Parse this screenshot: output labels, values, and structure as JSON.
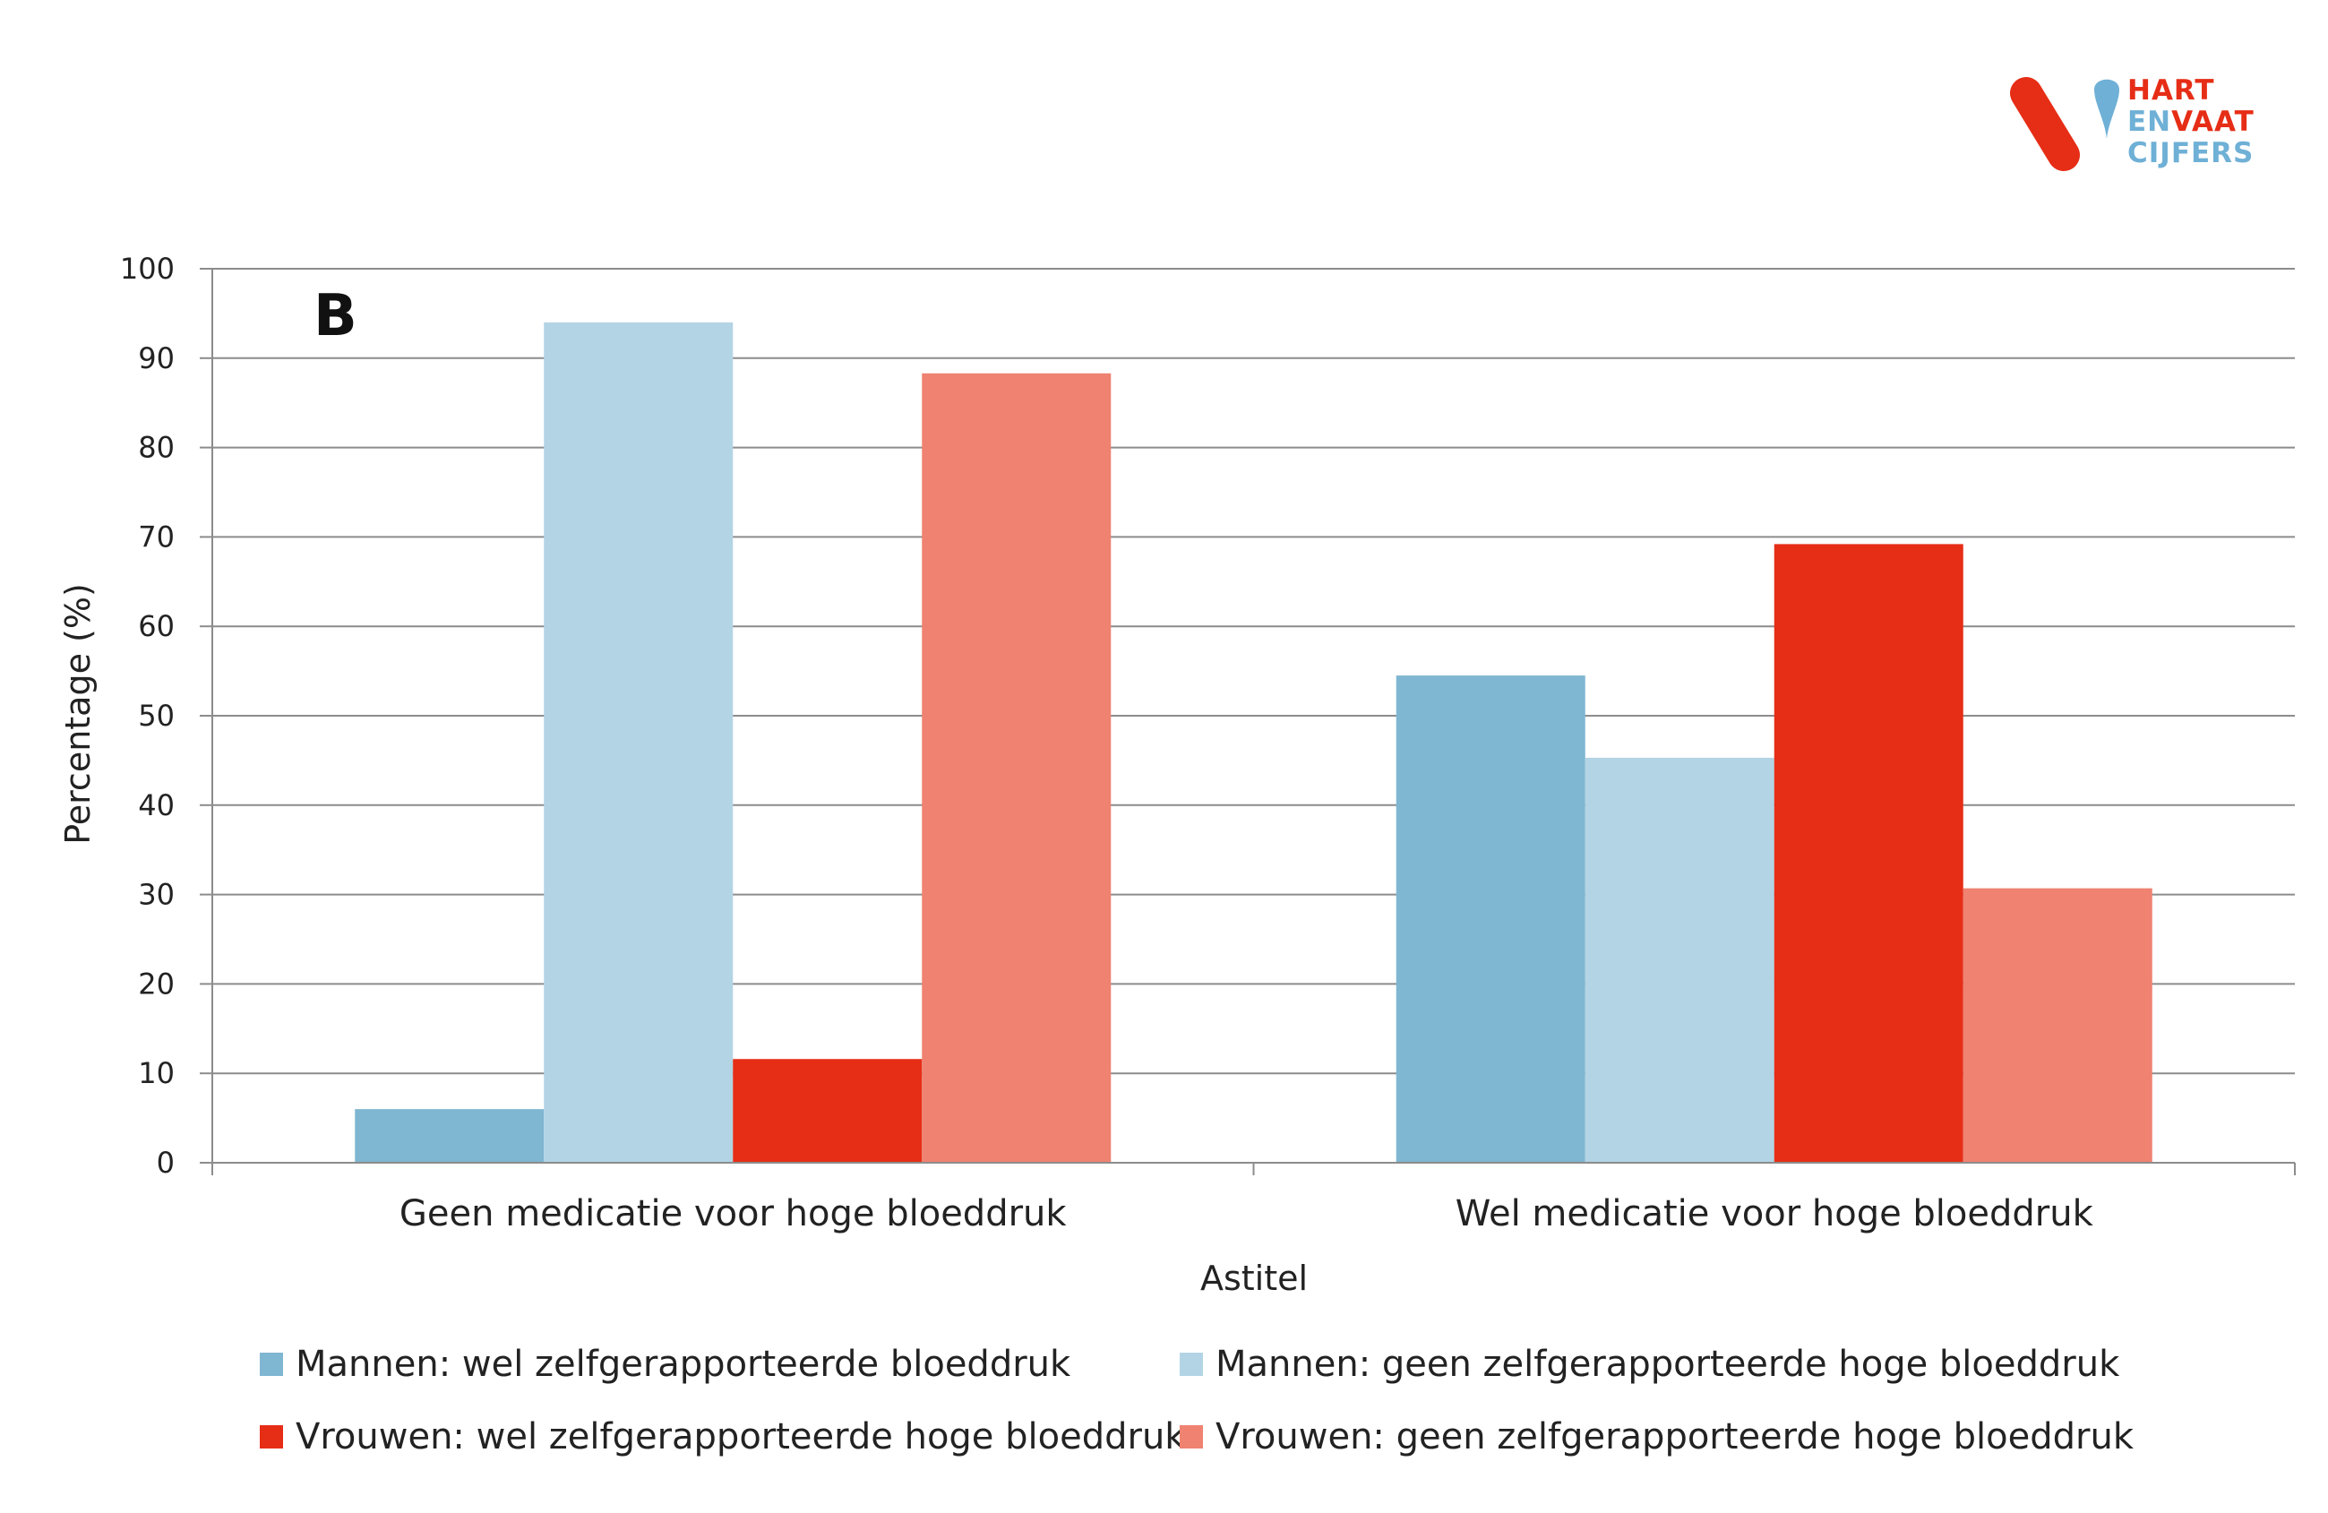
{
  "logo": {
    "line1": "HART",
    "line2_a": "EN",
    "line2_b": "VAAT",
    "line3": "CIJFERS",
    "colors": {
      "red": "#e62d16",
      "blue": "#6fb0d6"
    }
  },
  "chart_data": {
    "type": "bar",
    "panel_label": "B",
    "categories": [
      "Geen medicatie voor hoge bloeddruk",
      "Wel medicatie voor hoge bloeddruk"
    ],
    "series": [
      {
        "name": "Mannen: wel zelfgerapporteerde bloeddruk",
        "values": [
          6.0,
          54.5
        ],
        "color": "#7fb6d2"
      },
      {
        "name": "Mannen: geen zelfgerapporteerde hoge bloeddruk",
        "values": [
          94.0,
          45.3
        ],
        "color": "#b3d4e5"
      },
      {
        "name": "Vrouwen: wel zelfgerapporteerde hoge bloeddruk",
        "values": [
          11.6,
          69.2
        ],
        "color": "#e62d16"
      },
      {
        "name": "Vrouwen: geen zelfgerapporteerde hoge bloeddruk",
        "values": [
          88.3,
          30.7
        ],
        "color": "#ef8271"
      }
    ],
    "ylabel": "Percentage (%)",
    "xlabel": "Astitel",
    "ylim": [
      0,
      100
    ],
    "yticks": [
      "0",
      "10",
      "20",
      "30",
      "40",
      "50",
      "60",
      "70",
      "80",
      "90",
      "100"
    ],
    "grid": true,
    "legend_position": "bottom"
  }
}
